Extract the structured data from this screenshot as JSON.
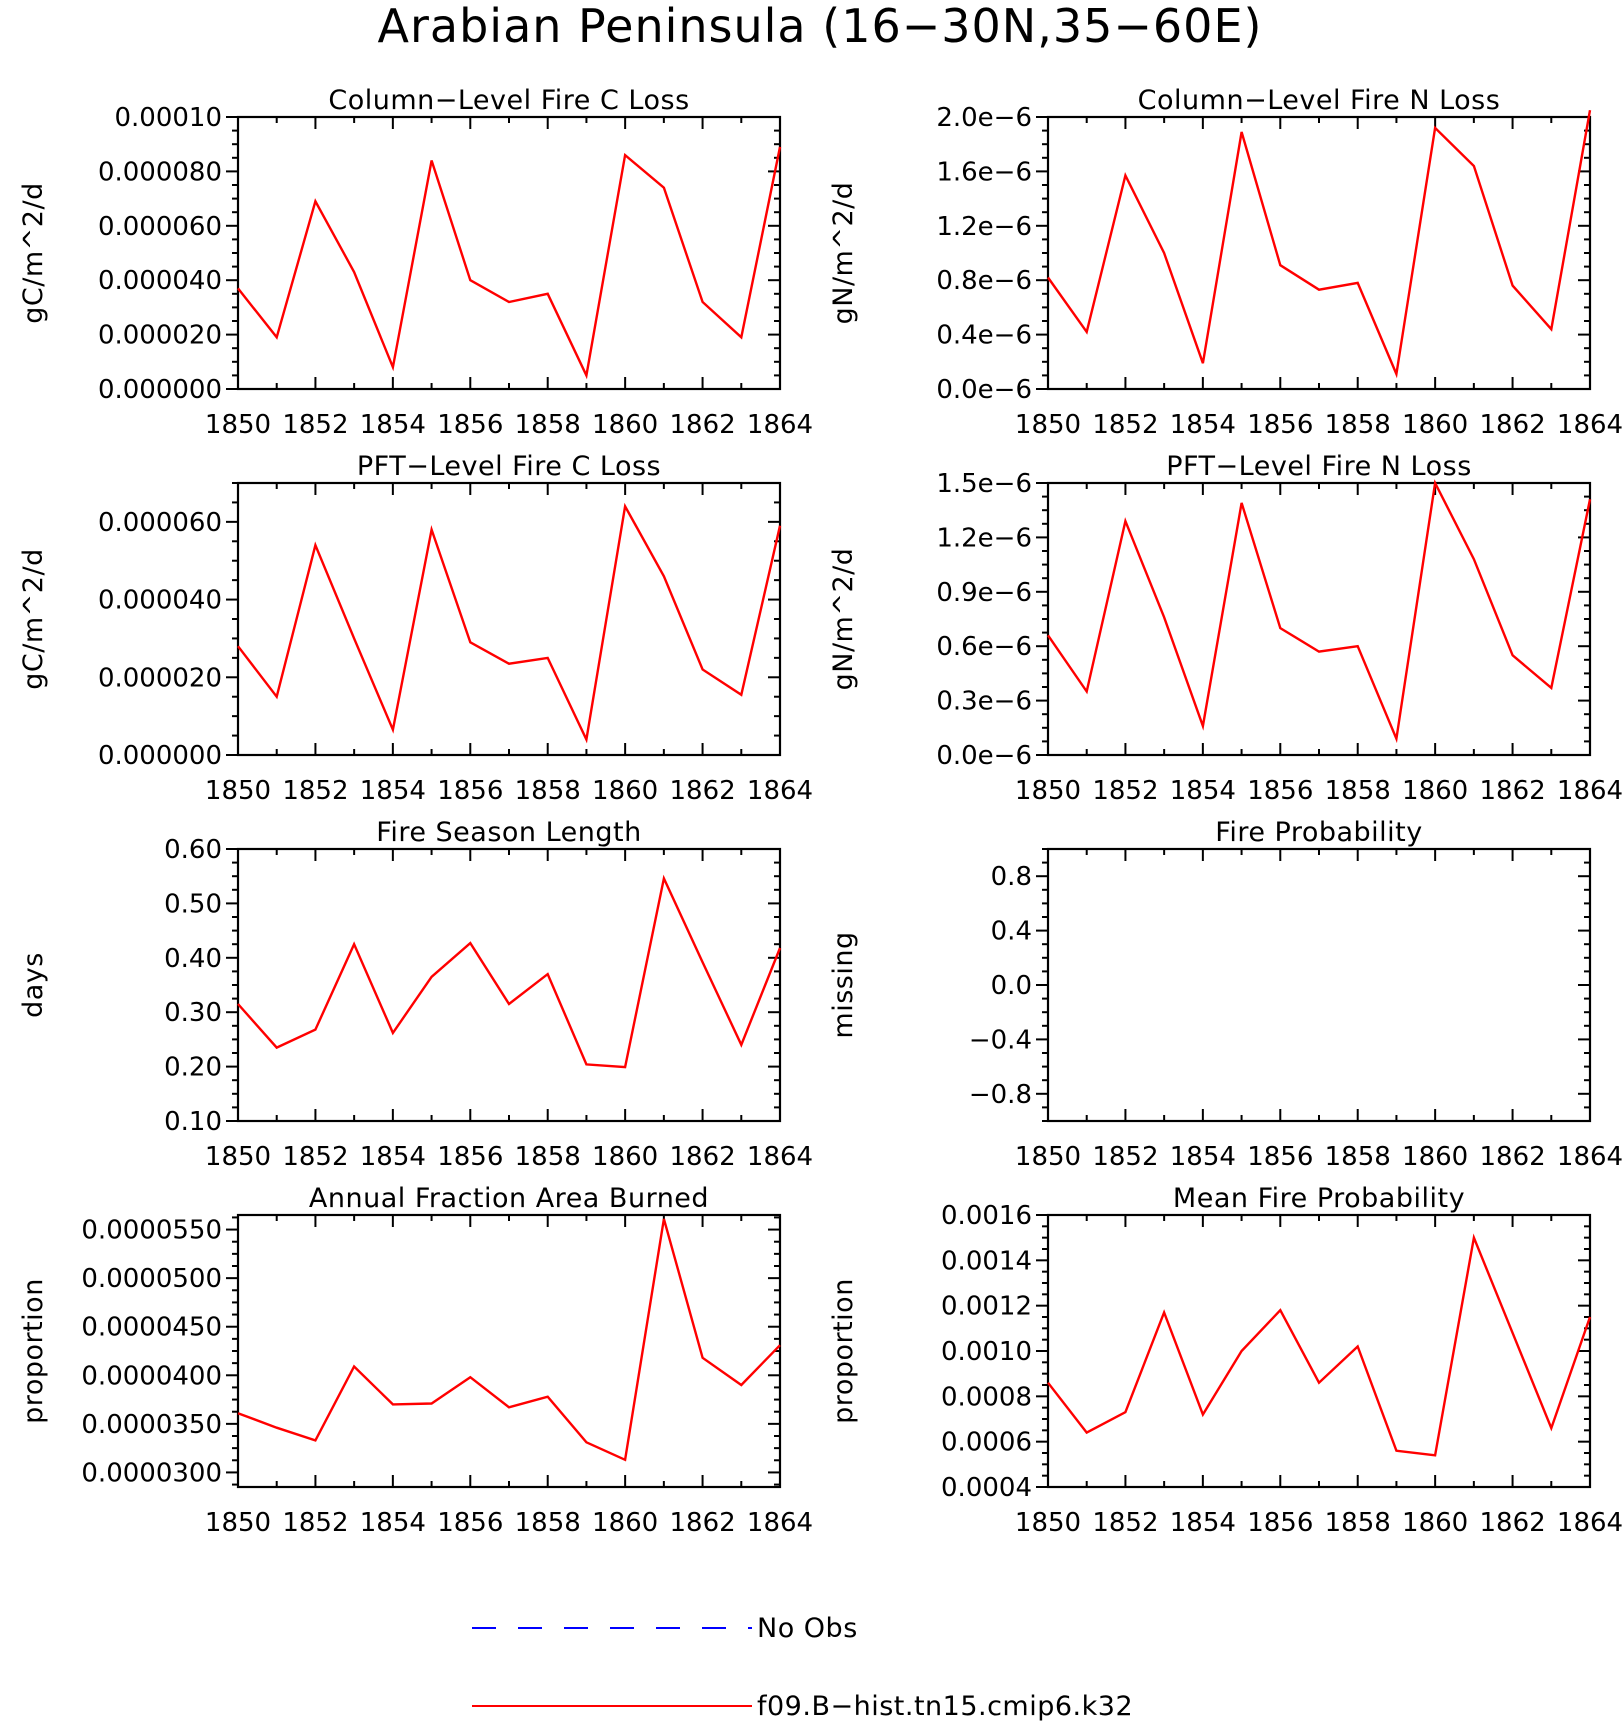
{
  "figure_title": "Arabian Peninsula (16−30N,35−60E)",
  "colors": {
    "model": "#ff0000",
    "obs": "#0000ff",
    "axis": "#000000"
  },
  "legend": {
    "obs_label": "No Obs",
    "model_label": "f09.B−hist.tn15.cmip6.k32"
  },
  "chart_data": [
    {
      "type": "line",
      "title": "Column−Level Fire C Loss",
      "ylabel": "gC/m^2/d",
      "xlim": [
        1850,
        1864
      ],
      "xticks": [
        "1850",
        "1852",
        "1854",
        "1856",
        "1858",
        "1860",
        "1862",
        "1864"
      ],
      "ylim": [
        0,
        0.0001
      ],
      "yticks": [
        "0.000000",
        "0.000020",
        "0.000040",
        "0.000060",
        "0.000080",
        "0.00010"
      ],
      "x": [
        1850,
        1851,
        1852,
        1853,
        1854,
        1855,
        1856,
        1857,
        1858,
        1859,
        1860,
        1861,
        1862,
        1863,
        1864
      ],
      "series": [
        {
          "values": [
            3.7e-05,
            1.9e-05,
            6.9e-05,
            4.3e-05,
            8e-06,
            8.4e-05,
            4e-05,
            3.2e-05,
            3.5e-05,
            5e-06,
            8.6e-05,
            7.4e-05,
            3.2e-05,
            1.9e-05,
            8.9e-05
          ]
        }
      ]
    },
    {
      "type": "line",
      "title": "Column−Level Fire N Loss",
      "ylabel": "gN/m^2/d",
      "xlim": [
        1850,
        1864
      ],
      "xticks": [
        "1850",
        "1852",
        "1854",
        "1856",
        "1858",
        "1860",
        "1862",
        "1864"
      ],
      "ylim": [
        0,
        2e-06
      ],
      "yticks": [
        "0.0e−6",
        "0.4e−6",
        "0.8e−6",
        "1.2e−6",
        "1.6e−6",
        "2.0e−6"
      ],
      "x": [
        1850,
        1851,
        1852,
        1853,
        1854,
        1855,
        1856,
        1857,
        1858,
        1859,
        1860,
        1861,
        1862,
        1863,
        1864
      ],
      "series": [
        {
          "values": [
            8.2e-07,
            4.2e-07,
            1.57e-06,
            1e-06,
            1.9e-07,
            1.89e-06,
            9.1e-07,
            7.3e-07,
            7.8e-07,
            1.1e-07,
            1.92e-06,
            1.64e-06,
            7.6e-07,
            4.4e-07,
            2.05e-06
          ]
        }
      ]
    },
    {
      "type": "line",
      "title": "PFT−Level Fire C Loss",
      "ylabel": "gC/m^2/d",
      "xlim": [
        1850,
        1864
      ],
      "xticks": [
        "1850",
        "1852",
        "1854",
        "1856",
        "1858",
        "1860",
        "1862",
        "1864"
      ],
      "ylim": [
        0,
        7e-05
      ],
      "yticks": [
        "0.000000",
        "0.000020",
        "0.000040",
        "0.000060"
      ],
      "x": [
        1850,
        1851,
        1852,
        1853,
        1854,
        1855,
        1856,
        1857,
        1858,
        1859,
        1860,
        1861,
        1862,
        1863,
        1864
      ],
      "series": [
        {
          "values": [
            2.8e-05,
            1.5e-05,
            5.4e-05,
            3e-05,
            6.5e-06,
            5.8e-05,
            2.9e-05,
            2.35e-05,
            2.5e-05,
            4e-06,
            6.4e-05,
            4.6e-05,
            2.2e-05,
            1.55e-05,
            5.9e-05
          ]
        }
      ]
    },
    {
      "type": "line",
      "title": "PFT−Level Fire N Loss",
      "ylabel": "gN/m^2/d",
      "xlim": [
        1850,
        1864
      ],
      "xticks": [
        "1850",
        "1852",
        "1854",
        "1856",
        "1858",
        "1860",
        "1862",
        "1864"
      ],
      "ylim": [
        0,
        1.5e-06
      ],
      "yticks": [
        "0.0e−6",
        "0.3e−6",
        "0.6e−6",
        "0.9e−6",
        "1.2e−6",
        "1.5e−6"
      ],
      "x": [
        1850,
        1851,
        1852,
        1853,
        1854,
        1855,
        1856,
        1857,
        1858,
        1859,
        1860,
        1861,
        1862,
        1863,
        1864
      ],
      "series": [
        {
          "values": [
            6.6e-07,
            3.5e-07,
            1.29e-06,
            7.6e-07,
            1.6e-07,
            1.39e-06,
            7e-07,
            5.7e-07,
            6e-07,
            9e-08,
            1.5e-06,
            1.08e-06,
            5.5e-07,
            3.7e-07,
            1.41e-06
          ]
        }
      ]
    },
    {
      "type": "line",
      "title": "Fire Season Length",
      "ylabel": "days",
      "xlim": [
        1850,
        1864
      ],
      "xticks": [
        "1850",
        "1852",
        "1854",
        "1856",
        "1858",
        "1860",
        "1862",
        "1864"
      ],
      "ylim": [
        0.1,
        0.6
      ],
      "yticks": [
        "0.10",
        "0.20",
        "0.30",
        "0.40",
        "0.50",
        "0.60"
      ],
      "x": [
        1850,
        1851,
        1852,
        1853,
        1854,
        1855,
        1856,
        1857,
        1858,
        1859,
        1860,
        1861,
        1862,
        1863,
        1864
      ],
      "series": [
        {
          "values": [
            0.315,
            0.235,
            0.268,
            0.425,
            0.262,
            0.365,
            0.427,
            0.315,
            0.37,
            0.204,
            0.199,
            0.546,
            0.392,
            0.24,
            0.418
          ]
        }
      ]
    },
    {
      "type": "line",
      "title": "Fire Probability",
      "ylabel": "missing",
      "xlim": [
        1850,
        1864
      ],
      "xticks": [
        "1850",
        "1852",
        "1854",
        "1856",
        "1858",
        "1860",
        "1862",
        "1864"
      ],
      "ylim": [
        -1.0,
        1.0
      ],
      "yticks": [
        "−0.8",
        "−0.4",
        "0.0",
        "0.4",
        "0.8"
      ],
      "x": [],
      "series": []
    },
    {
      "type": "line",
      "title": "Annual Fraction Area Burned",
      "ylabel": "proportion",
      "xlim": [
        1850,
        1864
      ],
      "xticks": [
        "1850",
        "1852",
        "1854",
        "1856",
        "1858",
        "1860",
        "1862",
        "1864"
      ],
      "ylim": [
        2.85e-05,
        5.65e-05
      ],
      "yticks": [
        "0.0000300",
        "0.0000350",
        "0.0000400",
        "0.0000450",
        "0.0000500",
        "0.0000550"
      ],
      "x": [
        1850,
        1851,
        1852,
        1853,
        1854,
        1855,
        1856,
        1857,
        1858,
        1859,
        1860,
        1861,
        1862,
        1863,
        1864
      ],
      "series": [
        {
          "values": [
            3.61e-05,
            3.46e-05,
            3.33e-05,
            4.09e-05,
            3.7e-05,
            3.71e-05,
            3.98e-05,
            3.67e-05,
            3.78e-05,
            3.31e-05,
            3.13e-05,
            5.61e-05,
            4.18e-05,
            3.9e-05,
            4.31e-05
          ]
        }
      ]
    },
    {
      "type": "line",
      "title": "Mean Fire Probability",
      "ylabel": "proportion",
      "xlim": [
        1850,
        1864
      ],
      "xticks": [
        "1850",
        "1852",
        "1854",
        "1856",
        "1858",
        "1860",
        "1862",
        "1864"
      ],
      "ylim": [
        0.0004,
        0.0016
      ],
      "yticks": [
        "0.0004",
        "0.0006",
        "0.0008",
        "0.0010",
        "0.0012",
        "0.0014",
        "0.0016"
      ],
      "x": [
        1850,
        1851,
        1852,
        1853,
        1854,
        1855,
        1856,
        1857,
        1858,
        1859,
        1860,
        1861,
        1862,
        1863,
        1864
      ],
      "series": [
        {
          "values": [
            0.00086,
            0.00064,
            0.00073,
            0.00117,
            0.00072,
            0.001,
            0.00118,
            0.00086,
            0.00102,
            0.00056,
            0.00054,
            0.0015,
            0.00108,
            0.00066,
            0.00115
          ]
        }
      ]
    }
  ]
}
